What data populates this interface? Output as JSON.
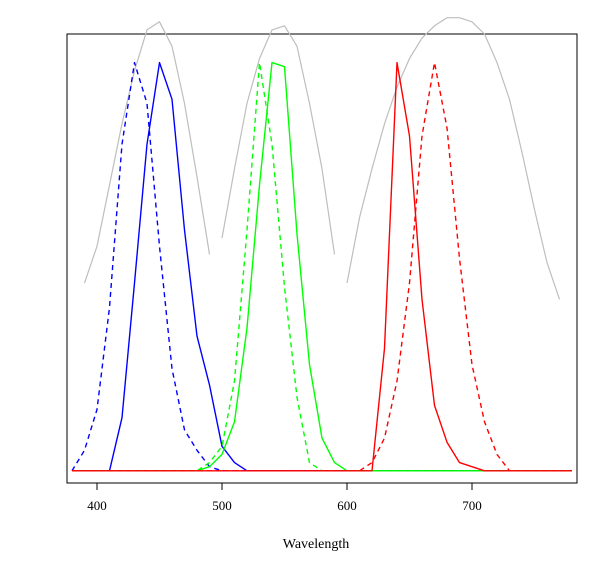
{
  "chart_data": {
    "type": "line",
    "title": "",
    "xlabel": "Wavelength",
    "ylabel": "",
    "xlim": [
      376,
      784
    ],
    "ylim": [
      -0.03,
      1.07
    ],
    "x_ticks": [
      400,
      500,
      600,
      700
    ],
    "x_tick_labels": [
      "400",
      "500",
      "600",
      "700"
    ],
    "y_ticks": [],
    "grid": false,
    "legend": "none",
    "series": [
      {
        "color": "#bebebe",
        "dash": "solid",
        "x": [
          390,
          400,
          410,
          420,
          430,
          440,
          450,
          460,
          470,
          480,
          490
        ],
        "y": [
          0.46,
          0.55,
          0.7,
          0.85,
          0.98,
          1.08,
          1.1,
          1.04,
          0.9,
          0.72,
          0.53
        ]
      },
      {
        "color": "#bebebe",
        "dash": "solid",
        "x": [
          500,
          510,
          520,
          530,
          540,
          550,
          560,
          570,
          580,
          590
        ],
        "y": [
          0.57,
          0.74,
          0.9,
          1.01,
          1.08,
          1.09,
          1.04,
          0.9,
          0.74,
          0.53
        ]
      },
      {
        "color": "#bebebe",
        "dash": "solid",
        "x": [
          600,
          610,
          620,
          630,
          640,
          650,
          660,
          670,
          680,
          690,
          700,
          710,
          720,
          730,
          740,
          750,
          760,
          770
        ],
        "y": [
          0.46,
          0.62,
          0.74,
          0.85,
          0.94,
          1.01,
          1.06,
          1.09,
          1.11,
          1.11,
          1.1,
          1.07,
          1.0,
          0.91,
          0.78,
          0.64,
          0.51,
          0.42
        ]
      },
      {
        "color": "#0000ff",
        "dash": "dashed",
        "x": [
          380,
          390,
          400,
          410,
          420,
          430,
          440,
          450,
          460,
          470,
          480,
          490,
          500,
          510,
          520,
          780
        ],
        "y": [
          0.0,
          0.05,
          0.15,
          0.4,
          0.8,
          1.0,
          0.9,
          0.55,
          0.25,
          0.1,
          0.05,
          0.01,
          0.0,
          0.0,
          0.0,
          0.0
        ]
      },
      {
        "color": "#0000ff",
        "dash": "solid",
        "x": [
          380,
          410,
          420,
          430,
          440,
          450,
          460,
          470,
          480,
          490,
          500,
          510,
          520,
          780
        ],
        "y": [
          0.0,
          0.0,
          0.13,
          0.46,
          0.8,
          1.0,
          0.91,
          0.59,
          0.33,
          0.21,
          0.06,
          0.02,
          0.0,
          0.0
        ]
      },
      {
        "color": "#00ff00",
        "dash": "dashed",
        "x": [
          380,
          480,
          490,
          500,
          510,
          520,
          530,
          540,
          550,
          560,
          570,
          580,
          780
        ],
        "y": [
          0.0,
          0.0,
          0.02,
          0.06,
          0.22,
          0.59,
          1.0,
          0.8,
          0.45,
          0.18,
          0.02,
          0.0,
          0.0
        ]
      },
      {
        "color": "#00ff00",
        "dash": "solid",
        "x": [
          380,
          480,
          490,
          500,
          510,
          520,
          530,
          540,
          550,
          560,
          570,
          580,
          590,
          600,
          780
        ],
        "y": [
          0.0,
          0.0,
          0.01,
          0.04,
          0.12,
          0.35,
          0.7,
          1.0,
          0.99,
          0.58,
          0.26,
          0.08,
          0.02,
          0.0,
          0.0
        ]
      },
      {
        "color": "#ff0000",
        "dash": "dashed",
        "x": [
          380,
          610,
          620,
          630,
          640,
          650,
          660,
          670,
          680,
          690,
          700,
          710,
          720,
          730,
          780
        ],
        "y": [
          0.0,
          0.0,
          0.02,
          0.08,
          0.22,
          0.46,
          0.82,
          1.0,
          0.84,
          0.52,
          0.26,
          0.12,
          0.04,
          0.0,
          0.0
        ]
      },
      {
        "color": "#ff0000",
        "dash": "solid",
        "x": [
          380,
          620,
          630,
          640,
          650,
          660,
          670,
          680,
          690,
          700,
          710,
          720,
          730,
          780
        ],
        "y": [
          0.0,
          0.0,
          0.3,
          1.0,
          0.82,
          0.42,
          0.16,
          0.07,
          0.02,
          0.01,
          0.0,
          0.0,
          0.0,
          0.0
        ]
      }
    ]
  }
}
